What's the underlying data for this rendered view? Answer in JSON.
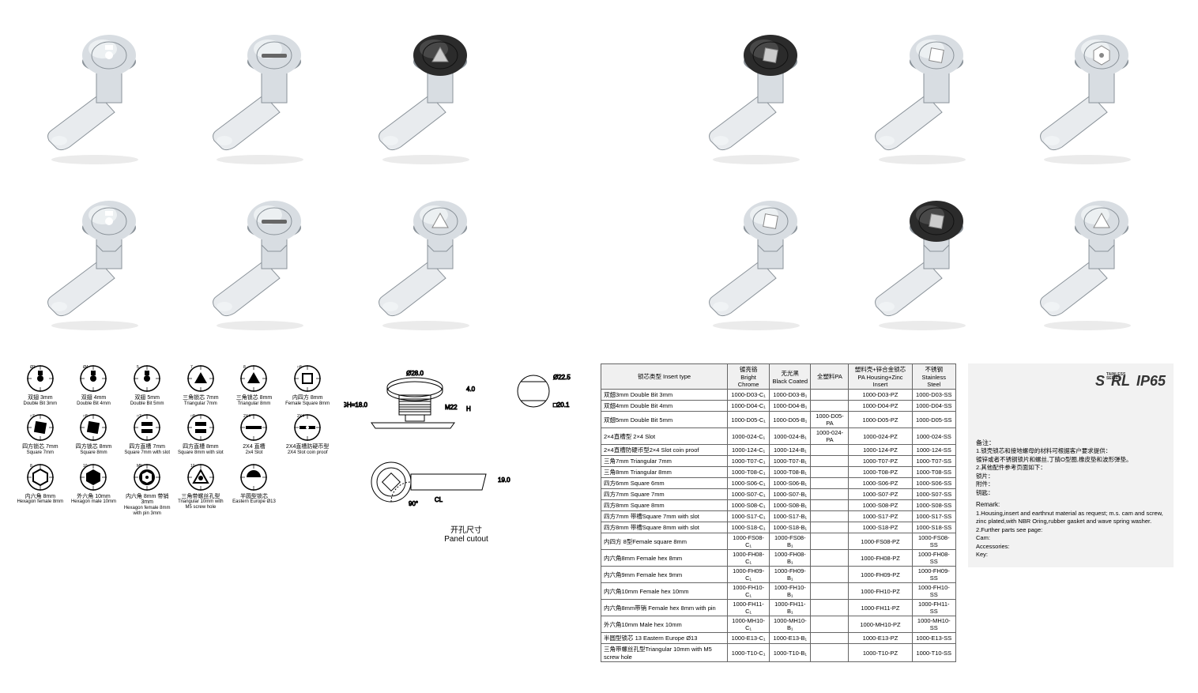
{
  "products": {
    "grid_count": 14,
    "variants": [
      {
        "body": "chrome",
        "head": "chrome",
        "insert": "doublebit"
      },
      {
        "body": "chrome",
        "head": "chrome",
        "insert": "slot"
      },
      {
        "body": "chrome",
        "head": "black",
        "insert": "triangle"
      },
      null,
      {
        "body": "chrome",
        "head": "black",
        "insert": "square"
      },
      {
        "body": "chrome",
        "head": "chrome",
        "insert": "square"
      },
      {
        "body": "chrome",
        "head": "chrome",
        "insert": "hex"
      },
      {
        "body": "chrome",
        "head": "chrome",
        "insert": "doublebit",
        "collar": true
      },
      {
        "body": "chrome",
        "head": "chrome",
        "insert": "slot",
        "collar": true
      },
      {
        "body": "chrome",
        "head": "chrome",
        "insert": "triangle",
        "collar": true
      },
      null,
      {
        "body": "chrome",
        "head": "chrome",
        "insert": "square",
        "collar": true
      },
      {
        "body": "chrome",
        "head": "black",
        "insert": "square",
        "collar": true
      },
      {
        "body": "chrome",
        "head": "chrome",
        "insert": "triangle",
        "collar": true
      }
    ]
  },
  "insert_icons": [
    {
      "cn": "双翅 3mm",
      "en": "Double Bit 3mm",
      "type": "doublebit",
      "dim": "Ø3"
    },
    {
      "cn": "双翅 4mm",
      "en": "Double Bit 4mm",
      "type": "doublebit",
      "dim": "Ø4"
    },
    {
      "cn": "双翅 5mm",
      "en": "Double Bit 5mm",
      "type": "doublebit",
      "dim": "5"
    },
    {
      "cn": "三角锁芯 7mm",
      "en": "Triangular 7mm",
      "type": "triangle",
      "dim": "7"
    },
    {
      "cn": "三角锁芯 8mm",
      "en": "Triangular 8mm",
      "type": "triangle",
      "dim": "8"
    },
    {
      "cn": "内四方 8mm",
      "en": "Female Square 8mm",
      "type": "female_square",
      "dim": "□8"
    },
    {
      "cn": "四方锁芯 7mm",
      "en": "Square 7mm",
      "type": "square",
      "dim": "□7"
    },
    {
      "cn": "四方锁芯 8mm",
      "en": "Square 8mm",
      "type": "square",
      "dim": "□8"
    },
    {
      "cn": "四方直槽 7mm",
      "en": "Square 7mm with slot",
      "type": "square_slot",
      "dim": "□7"
    },
    {
      "cn": "四方直槽 8mm",
      "en": "Square 8mm with slot",
      "type": "square_slot",
      "dim": "□8"
    },
    {
      "cn": "2X4 直槽",
      "en": "2x4 Slot",
      "type": "slot",
      "dim": "2X4"
    },
    {
      "cn": "2X4直槽防硬币型",
      "en": "2X4 Slot coin proof",
      "type": "slot_coin",
      "dim": "2X4"
    },
    {
      "cn": "内六角 8mm",
      "en": "Hexagon female 8mm",
      "type": "female_hex",
      "dim": "8"
    },
    {
      "cn": "外六角 10mm",
      "en": "Hexagon male 10mm",
      "type": "male_hex",
      "dim": "10"
    },
    {
      "cn": "内六角 8mm 带销 3mm",
      "en": "Hexagon female 8mm with pin 3mm",
      "type": "female_hex_pin",
      "dim": "M5"
    },
    {
      "cn": "三角带螺丝孔型",
      "en": "Triangular 10mm with M5 screw hole",
      "type": "triangle_m5",
      "dim": "10"
    },
    {
      "cn": "半圆型锁芯",
      "en": "Eastern Europe Ø13",
      "type": "halfround",
      "dim": ""
    }
  ],
  "tech": {
    "dims": {
      "head_dia": "Ø28.0",
      "thread": "M22",
      "gh": "GH=18.0",
      "a": "4.0",
      "h": "H",
      "cl": "CL",
      "cutout_dia": "Ø22.5",
      "cutout_flat": "□20.1",
      "rot": "90°",
      "height2": "19.0"
    },
    "panel_cutout_cn": "开孔尺寸",
    "panel_cutout_en": "Panel cutout"
  },
  "table": {
    "header_insert_cn": "锁芯类型",
    "header_insert_en": "Insert type",
    "columns": [
      {
        "cn": "镀亮铬",
        "en": "Bright Chrome"
      },
      {
        "cn": "无光黑",
        "en": "Black Coated"
      },
      {
        "cn": "全塑料PA",
        "en": ""
      },
      {
        "cn": "塑料壳+锌合金锁芯",
        "en": "PA Housing+Zinc Insert"
      },
      {
        "cn": "不锈钢",
        "en": "Stainless Steel"
      }
    ],
    "rows": [
      {
        "label": "双翅3mm Double Bit 3mm",
        "c": [
          "1000-D03-C₁",
          "1000-D03-B₁",
          "",
          "1000-D03-PZ",
          "1000-D03-SS"
        ]
      },
      {
        "label": "双翅4mm Double Bit 4mm",
        "c": [
          "1000-D04-C₁",
          "1000-D04-B₁",
          "",
          "1000-D04-PZ",
          "1000-D04-SS"
        ]
      },
      {
        "label": "双翅5mm Double Bit 5mm",
        "c": [
          "1000-D05-C₁",
          "1000-D05-B₁",
          "1000-D05-PA",
          "1000-D05-PZ",
          "1000-D05-SS"
        ]
      },
      {
        "label": "2×4直槽型 2×4 Slot",
        "c": [
          "1000-024-C₁",
          "1000-024-B₁",
          "1000-024-PA",
          "1000-024-PZ",
          "1000-024-SS"
        ]
      },
      {
        "label": "2×4直槽防硬币型2×4 Slot coin proof",
        "c": [
          "1000-124-C₁",
          "1000-124-B₁",
          "",
          "1000-124-PZ",
          "1000-124-SS"
        ]
      },
      {
        "label": "三角7mm Triangular 7mm",
        "c": [
          "1000-T07-C₁",
          "1000-T07-B₁",
          "",
          "1000-T07-PZ",
          "1000-T07-SS"
        ]
      },
      {
        "label": "三角8mm Triangular 8mm",
        "c": [
          "1000-T08-C₁",
          "1000-T08-B₁",
          "",
          "1000-T08-PZ",
          "1000-T08-SS"
        ]
      },
      {
        "label": "四方6mm Square 6mm",
        "c": [
          "1000-S06-C₁",
          "1000-S06-B₁",
          "",
          "1000-S06-PZ",
          "1000-S06-SS"
        ]
      },
      {
        "label": "四方7mm Square 7mm",
        "c": [
          "1000-S07-C₁",
          "1000-S07-B₁",
          "",
          "1000-S07-PZ",
          "1000-S07-SS"
        ]
      },
      {
        "label": "四方8mm Square 8mm",
        "c": [
          "1000-S08-C₁",
          "1000-S08-B₁",
          "",
          "1000-S08-PZ",
          "1000-S08-SS"
        ]
      },
      {
        "label": "四方7mm 带槽Square 7mm with slot",
        "c": [
          "1000-S17-C₁",
          "1000-S17-B₁",
          "",
          "1000-S17-PZ",
          "1000-S17-SS"
        ]
      },
      {
        "label": "四方8mm 带槽Square 8mm with slot",
        "c": [
          "1000-S18-C₁",
          "1000-S18-B₁",
          "",
          "1000-S18-PZ",
          "1000-S18-SS"
        ]
      },
      {
        "label": "内四方 8型Female square 8mm",
        "c": [
          "1000-FS08-C₁",
          "1000-FS08-B₁",
          "",
          "1000-FS08-PZ",
          "1000-FS08-SS"
        ]
      },
      {
        "label": "内六角8mm Female hex 8mm",
        "c": [
          "1000-FH08-C₁",
          "1000-FH08-B₁",
          "",
          "1000-FH08-PZ",
          "1000-FH08-SS"
        ]
      },
      {
        "label": "内六角9mm Female hex 9mm",
        "c": [
          "1000-FH09-C₁",
          "1000-FH09-B₁",
          "",
          "1000-FH09-PZ",
          "1000-FH09-SS"
        ]
      },
      {
        "label": "内六角10mm Female hex 10mm",
        "c": [
          "1000-FH10-C₁",
          "1000-FH10-B₁",
          "",
          "1000-FH10-PZ",
          "1000-FH10-SS"
        ]
      },
      {
        "label": "内六角8mm带销 Female hex 8mm with pin",
        "c": [
          "1000-FH11-C₁",
          "1000-FH11-B₁",
          "",
          "1000-FH11-PZ",
          "1000-FH11-SS"
        ]
      },
      {
        "label": "外六角10mm Male hex 10mm",
        "c": [
          "1000-MH10-C₁",
          "1000-MH10-B₁",
          "",
          "1000-MH10-PZ",
          "1000-MH10-SS"
        ]
      },
      {
        "label": "半圆型锁芯 13 Eastern Europe Ø13",
        "c": [
          "1000-E13-C₁",
          "1000-E13-B₁",
          "",
          "1000-E13-PZ",
          "1000-E13-SS"
        ]
      },
      {
        "label": "三角带螺丝孔型Triangular 10mm with M5 screw hole",
        "c": [
          "1000-T10-C₁",
          "1000-T10-B₁",
          "",
          "1000-T10-PZ",
          "1000-T10-SS"
        ]
      }
    ]
  },
  "badges": {
    "s": "S",
    "s_sub": "TAINLESS\nSERIES",
    "rl": "RL",
    "ip": "IP65"
  },
  "notes": {
    "cn_title": "备注：",
    "cn_1": "1.锁壳锁芯和接地螺母的材料可根据客户要求提供：",
    "cn_2": "镀锌或者不锈钢锁片和螺丝,丁腈O型圈,橡皮垫和波形弹垫。",
    "cn_3": "2.其他配件参考页面如下：",
    "cn_4": "锁片：",
    "cn_5": "附件：",
    "cn_6": "钥匙：",
    "en_title": "Remark:",
    "en_1": "1.Housing,insert and earthnut material as request; m.s. cam and screw, zinc plated,with NBR Oring,rubber gasket and wave spring washer.",
    "en_2": "2.Further parts see page:",
    "en_3": "Cam:",
    "en_4": "Accessories:",
    "en_5": "Key:"
  },
  "colors": {
    "chrome": "#d8dde2",
    "chrome_hl": "#f5f8fa",
    "chrome_sh": "#8a9299",
    "black": "#2b2b2b",
    "black_hl": "#555",
    "cam": "#e8ebee"
  }
}
